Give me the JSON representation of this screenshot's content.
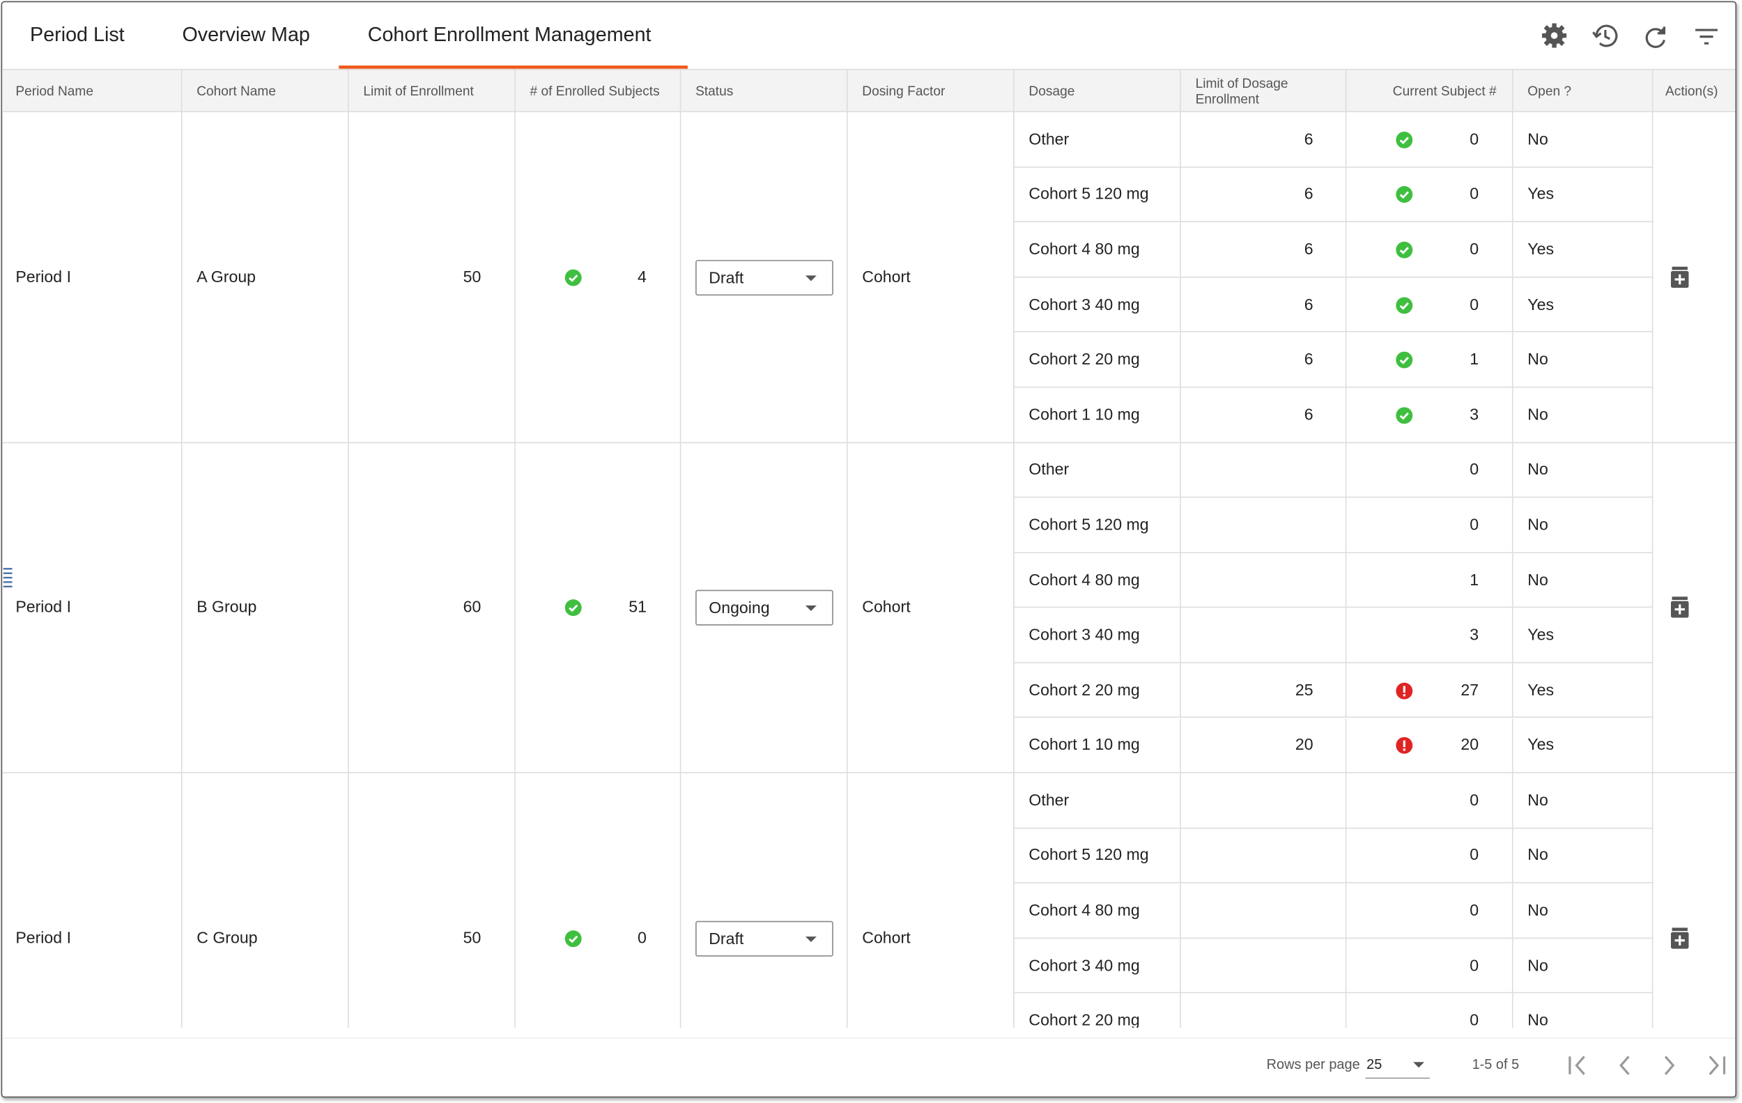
{
  "tabs": [
    "Period List",
    "Overview Map",
    "Cohort Enrollment Management"
  ],
  "active_tab": 2,
  "table": {
    "headers": [
      "Period Name",
      "Cohort Name",
      "Limit of Enrollment",
      "# of Enrolled Subjects",
      "Status",
      "Dosing Factor",
      "Dosage",
      "Limit of Dosage Enrollment",
      "Current Subject #",
      "Open ?",
      "Action(s)"
    ],
    "groups": [
      {
        "period": "Period I",
        "cohort": "A Group",
        "limit": 50,
        "enrolled": 4,
        "enrolled_icon": "ok",
        "status": "Draft",
        "dosing_factor": "Cohort",
        "dosages": [
          {
            "dosage": "Other",
            "limit": 6,
            "current": 0,
            "icon": "ok",
            "open": "No"
          },
          {
            "dosage": "Cohort 5 120 mg",
            "limit": 6,
            "current": 0,
            "icon": "ok",
            "open": "Yes"
          },
          {
            "dosage": "Cohort 4 80 mg",
            "limit": 6,
            "current": 0,
            "icon": "ok",
            "open": "Yes"
          },
          {
            "dosage": "Cohort 3 40 mg",
            "limit": 6,
            "current": 0,
            "icon": "ok",
            "open": "Yes"
          },
          {
            "dosage": "Cohort 2 20 mg",
            "limit": 6,
            "current": 1,
            "icon": "ok",
            "open": "No"
          },
          {
            "dosage": "Cohort 1 10 mg",
            "limit": 6,
            "current": 3,
            "icon": "ok",
            "open": "No"
          }
        ]
      },
      {
        "period": "Period I",
        "cohort": "B Group",
        "limit": 60,
        "enrolled": 51,
        "enrolled_icon": "ok",
        "status": "Ongoing",
        "dosing_factor": "Cohort",
        "dosages": [
          {
            "dosage": "Other",
            "limit": null,
            "current": 0,
            "open": "No"
          },
          {
            "dosage": "Cohort 5 120 mg",
            "limit": null,
            "current": 0,
            "open": "No"
          },
          {
            "dosage": "Cohort 4 80 mg",
            "limit": null,
            "current": 1,
            "open": "No"
          },
          {
            "dosage": "Cohort 3 40 mg",
            "limit": null,
            "current": 3,
            "open": "Yes"
          },
          {
            "dosage": "Cohort 2 20 mg",
            "limit": 25,
            "current": 27,
            "icon": "error",
            "open": "Yes"
          },
          {
            "dosage": "Cohort 1 10 mg",
            "limit": 20,
            "current": 20,
            "icon": "error",
            "open": "Yes"
          }
        ]
      },
      {
        "period": "Period I",
        "cohort": "C Group",
        "limit": 50,
        "enrolled": 0,
        "enrolled_icon": "ok",
        "status": "Draft",
        "dosing_factor": "Cohort",
        "dosages": [
          {
            "dosage": "Other",
            "limit": null,
            "current": 0,
            "open": "No"
          },
          {
            "dosage": "Cohort 5 120 mg",
            "limit": null,
            "current": 0,
            "open": "No"
          },
          {
            "dosage": "Cohort 4 80 mg",
            "limit": null,
            "current": 0,
            "open": "No"
          },
          {
            "dosage": "Cohort 3 40 mg",
            "limit": null,
            "current": 0,
            "open": "No"
          },
          {
            "dosage": "Cohort 2 20 mg",
            "limit": null,
            "current": 0,
            "open": "No"
          }
        ]
      }
    ]
  },
  "pagination": {
    "rows_per_page_label": "Rows per page",
    "rows_per_page": 25,
    "range": "1-5 of 5"
  }
}
